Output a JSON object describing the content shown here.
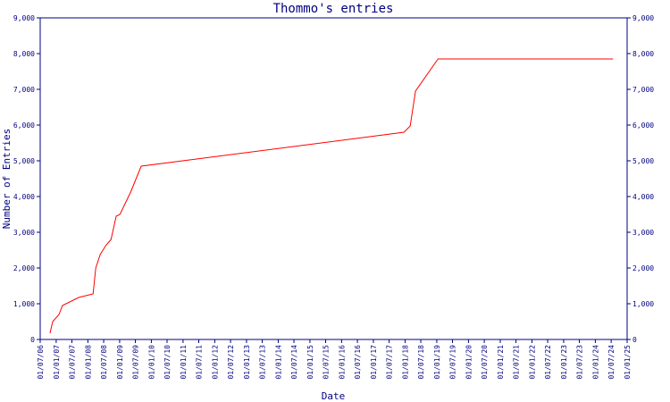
{
  "chart_data": {
    "type": "line",
    "title": "Thommo's entries",
    "x_label": "Date",
    "y_label": "Number of Entries",
    "series": [
      {
        "name": "Entries",
        "color": "#ff0000",
        "x": [
          "2006-10-22",
          "2006-11-22",
          "2007-02-03",
          "2007-03-14",
          "2007-09-17",
          "2008-03-01",
          "2008-04-01",
          "2008-05-22",
          "2008-07-24",
          "2008-09-24",
          "2008-11-22",
          "2009-01-04",
          "2009-05-08",
          "2009-09-06",
          "2017-12-20",
          "2018-03-01",
          "2018-05-01",
          "2019-01-15",
          "2024-07-23"
        ],
        "values": [
          175,
          500,
          700,
          950,
          1175,
          1275,
          2000,
          2375,
          2625,
          2800,
          3450,
          3500,
          4125,
          4850,
          5800,
          5975,
          6950,
          7850,
          7850
        ]
      }
    ],
    "xlim": [
      "2006-07-01",
      "2025-01-01"
    ],
    "xticks": [
      {
        "value": "2006-07-01",
        "label": "01/07/06"
      },
      {
        "value": "2007-01-01",
        "label": "01/01/07"
      },
      {
        "value": "2007-07-01",
        "label": "01/07/07"
      },
      {
        "value": "2008-01-01",
        "label": "01/01/08"
      },
      {
        "value": "2008-07-01",
        "label": "01/07/08"
      },
      {
        "value": "2009-01-01",
        "label": "01/01/09"
      },
      {
        "value": "2009-07-01",
        "label": "01/07/09"
      },
      {
        "value": "2010-01-01",
        "label": "01/01/10"
      },
      {
        "value": "2010-07-01",
        "label": "01/07/10"
      },
      {
        "value": "2011-01-01",
        "label": "01/01/11"
      },
      {
        "value": "2011-07-01",
        "label": "01/07/11"
      },
      {
        "value": "2012-01-01",
        "label": "01/01/12"
      },
      {
        "value": "2012-07-01",
        "label": "01/07/12"
      },
      {
        "value": "2013-01-01",
        "label": "01/01/13"
      },
      {
        "value": "2013-07-01",
        "label": "01/07/13"
      },
      {
        "value": "2014-01-01",
        "label": "01/01/14"
      },
      {
        "value": "2014-07-01",
        "label": "01/07/14"
      },
      {
        "value": "2015-01-01",
        "label": "01/01/15"
      },
      {
        "value": "2015-07-01",
        "label": "01/07/15"
      },
      {
        "value": "2016-01-01",
        "label": "01/01/16"
      },
      {
        "value": "2016-07-01",
        "label": "01/07/16"
      },
      {
        "value": "2017-01-01",
        "label": "01/01/17"
      },
      {
        "value": "2017-07-01",
        "label": "01/07/17"
      },
      {
        "value": "2018-01-01",
        "label": "01/01/18"
      },
      {
        "value": "2018-07-01",
        "label": "01/07/18"
      },
      {
        "value": "2019-01-01",
        "label": "01/01/19"
      },
      {
        "value": "2019-07-01",
        "label": "01/07/19"
      },
      {
        "value": "2020-01-01",
        "label": "01/01/20"
      },
      {
        "value": "2020-07-01",
        "label": "01/07/20"
      },
      {
        "value": "2021-01-01",
        "label": "01/01/21"
      },
      {
        "value": "2021-07-01",
        "label": "01/07/21"
      },
      {
        "value": "2022-01-01",
        "label": "01/01/22"
      },
      {
        "value": "2022-07-01",
        "label": "01/07/22"
      },
      {
        "value": "2023-01-01",
        "label": "01/01/23"
      },
      {
        "value": "2023-07-01",
        "label": "01/07/23"
      },
      {
        "value": "2024-01-01",
        "label": "01/01/24"
      },
      {
        "value": "2024-07-01",
        "label": "01/07/24"
      },
      {
        "value": "2025-01-01",
        "label": "01/01/25"
      }
    ],
    "ylim": [
      0,
      9000
    ],
    "yticks": [
      0,
      {
        "value": 1000,
        "label": "1,000"
      },
      {
        "value": 2000,
        "label": "2,000"
      },
      {
        "value": 3000,
        "label": "3,000"
      },
      {
        "value": 4000,
        "label": "4,000"
      },
      {
        "value": 5000,
        "label": "5,000"
      },
      {
        "value": 6000,
        "label": "6,000"
      },
      {
        "value": 7000,
        "label": "7,000"
      },
      {
        "value": 8000,
        "label": "8,000"
      },
      {
        "value": 9000,
        "label": "9,000"
      }
    ],
    "axis_color": "#000080",
    "mirror_y_axis": true
  }
}
